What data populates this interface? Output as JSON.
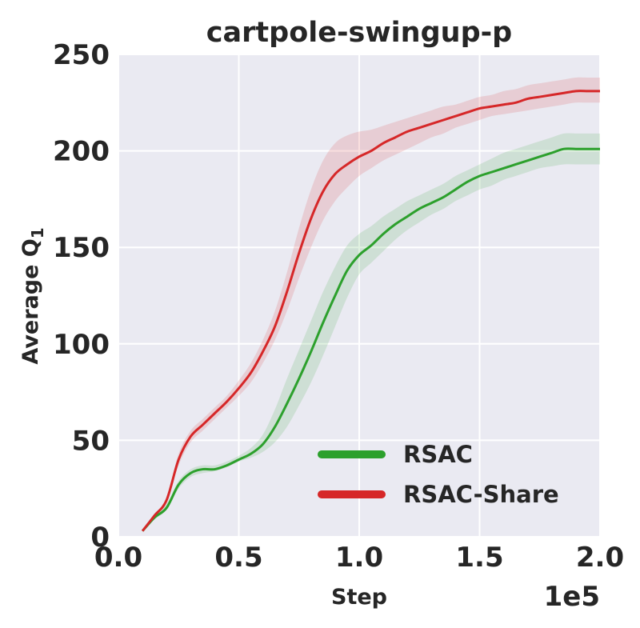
{
  "chart_data": {
    "type": "line",
    "title": "cartpole-swingup-p",
    "xlabel": "Step",
    "ylabel": "Average Q",
    "ylabel_subscript": "1",
    "x_offset_label": "1e5",
    "xlim": [
      0.0,
      2.0
    ],
    "ylim": [
      0,
      250
    ],
    "x_scale_multiplier": 100000,
    "x_ticks": [
      "0.0",
      "0.5",
      "1.0",
      "1.5",
      "2.0"
    ],
    "y_ticks": [
      "0",
      "50",
      "100",
      "150",
      "200",
      "250"
    ],
    "grid": true,
    "legend_position": "lower-right",
    "x": [
      0.1,
      0.15,
      0.2,
      0.25,
      0.3,
      0.35,
      0.4,
      0.45,
      0.5,
      0.55,
      0.6,
      0.65,
      0.7,
      0.75,
      0.8,
      0.85,
      0.9,
      0.95,
      1.0,
      1.05,
      1.1,
      1.15,
      1.2,
      1.25,
      1.3,
      1.35,
      1.4,
      1.45,
      1.5,
      1.55,
      1.6,
      1.65,
      1.7,
      1.75,
      1.8,
      1.85,
      1.9,
      1.95,
      2.0
    ],
    "series": [
      {
        "name": "RSAC",
        "color": "#2ca02c",
        "values": [
          3,
          10,
          15,
          27,
          33,
          35,
          35,
          37,
          40,
          43,
          48,
          57,
          69,
          82,
          96,
          111,
          125,
          138,
          146,
          151,
          157,
          162,
          166,
          170,
          173,
          176,
          180,
          184,
          187,
          189,
          191,
          193,
          195,
          197,
          199,
          201,
          201,
          201,
          201
        ],
        "lower": [
          3,
          9,
          14,
          25,
          31,
          33,
          34,
          36,
          39,
          41,
          44,
          49,
          57,
          68,
          80,
          94,
          109,
          124,
          136,
          142,
          148,
          154,
          159,
          163,
          167,
          170,
          174,
          177,
          180,
          182,
          185,
          187,
          189,
          191,
          192,
          193,
          193,
          193,
          193
        ],
        "upper": [
          4,
          11,
          17,
          29,
          35,
          37,
          37,
          39,
          42,
          46,
          53,
          66,
          82,
          97,
          112,
          127,
          140,
          151,
          157,
          161,
          166,
          170,
          174,
          177,
          180,
          183,
          187,
          190,
          193,
          196,
          199,
          201,
          203,
          205,
          207,
          209,
          209,
          209,
          209
        ]
      },
      {
        "name": "RSAC-Share",
        "color": "#d62728",
        "values": [
          3,
          11,
          19,
          40,
          52,
          58,
          64,
          70,
          77,
          85,
          96,
          109,
          127,
          147,
          165,
          179,
          188,
          193,
          197,
          200,
          204,
          207,
          210,
          212,
          214,
          216,
          218,
          220,
          222,
          223,
          224,
          225,
          227,
          228,
          229,
          230,
          231,
          231,
          231
        ],
        "lower": [
          3,
          10,
          18,
          37,
          49,
          55,
          61,
          67,
          73,
          80,
          90,
          102,
          117,
          134,
          150,
          164,
          174,
          181,
          187,
          191,
          195,
          198,
          201,
          204,
          207,
          209,
          212,
          214,
          216,
          218,
          219,
          220,
          221,
          222,
          223,
          224,
          225,
          225,
          225
        ],
        "upper": [
          4,
          12,
          20,
          43,
          55,
          61,
          67,
          73,
          81,
          90,
          102,
          117,
          137,
          160,
          180,
          195,
          204,
          208,
          210,
          211,
          213,
          215,
          217,
          219,
          221,
          223,
          224,
          226,
          228,
          229,
          231,
          232,
          234,
          235,
          236,
          237,
          238,
          238,
          238
        ]
      }
    ]
  }
}
